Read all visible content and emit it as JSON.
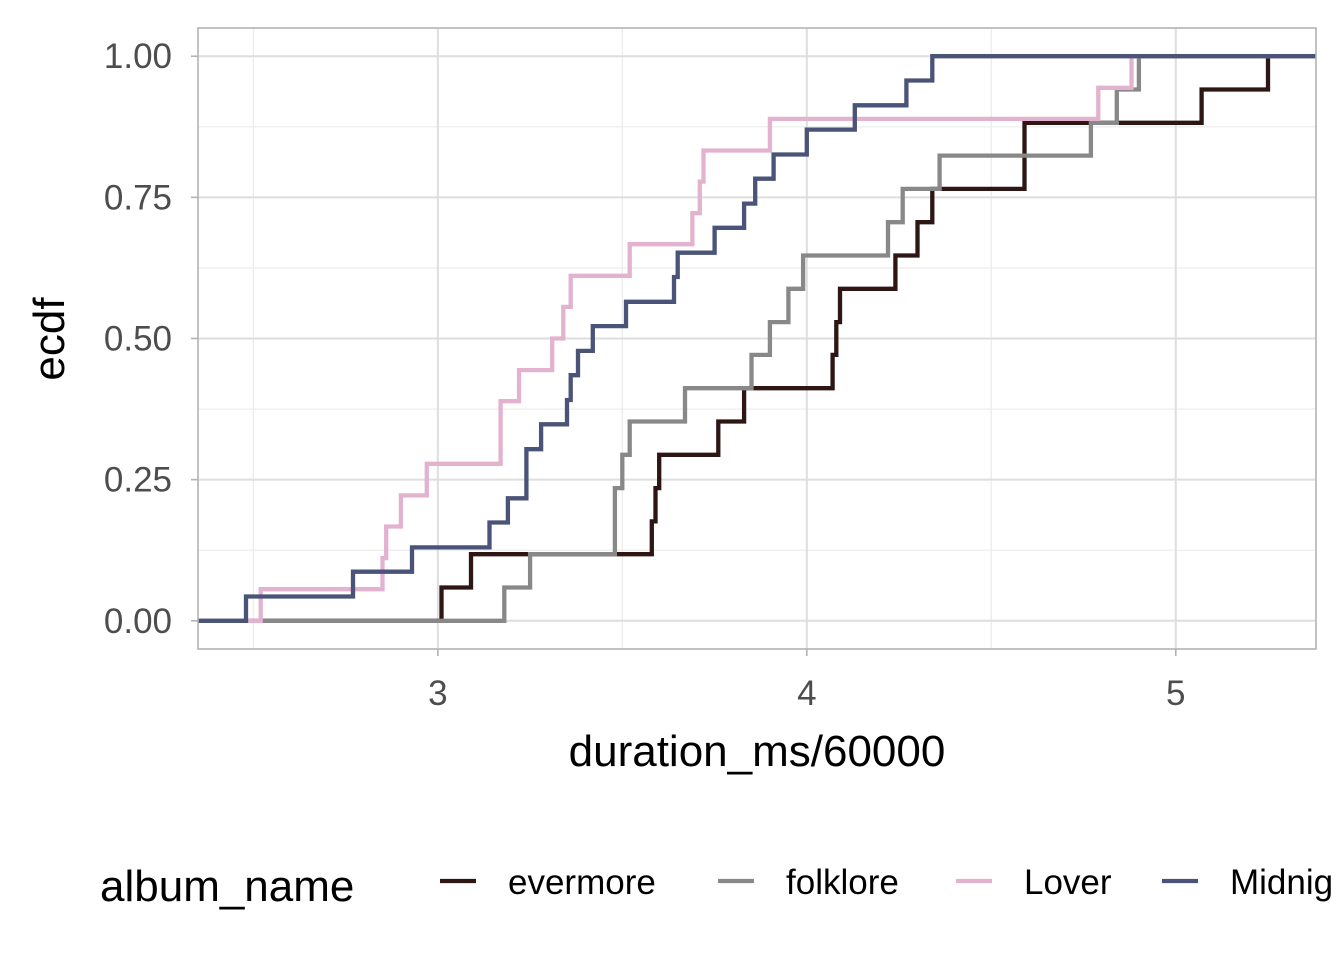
{
  "chart_data": {
    "type": "line",
    "subtype": "ecdf-step",
    "xlabel": "duration_ms/60000",
    "ylabel": "ecdf",
    "xlim": [
      2.35,
      5.38
    ],
    "ylim": [
      -0.05,
      1.05
    ],
    "x_ticks": [
      3,
      4,
      5
    ],
    "x_tick_labels": [
      "3",
      "4",
      "5"
    ],
    "y_ticks": [
      0,
      0.25,
      0.5,
      0.75,
      1
    ],
    "y_tick_labels": [
      "0.00",
      "0.25",
      "0.50",
      "0.75",
      "1.00"
    ],
    "grid": true,
    "legend": {
      "title": "album_name",
      "position": "bottom",
      "entries": [
        "evermore",
        "folklore",
        "Lover",
        "Midnig"
      ]
    },
    "series": [
      {
        "name": "evermore",
        "color": "#2d1613",
        "points": [
          [
            2.35,
            0
          ],
          [
            3.01,
            0
          ],
          [
            3.01,
            0.059
          ],
          [
            3.09,
            0.059
          ],
          [
            3.09,
            0.118
          ],
          [
            3.58,
            0.118
          ],
          [
            3.58,
            0.176
          ],
          [
            3.59,
            0.176
          ],
          [
            3.59,
            0.235
          ],
          [
            3.6,
            0.235
          ],
          [
            3.6,
            0.294
          ],
          [
            3.76,
            0.294
          ],
          [
            3.76,
            0.353
          ],
          [
            3.83,
            0.353
          ],
          [
            3.83,
            0.412
          ],
          [
            4.07,
            0.412
          ],
          [
            4.07,
            0.471
          ],
          [
            4.08,
            0.471
          ],
          [
            4.08,
            0.529
          ],
          [
            4.09,
            0.529
          ],
          [
            4.09,
            0.588
          ],
          [
            4.24,
            0.588
          ],
          [
            4.24,
            0.647
          ],
          [
            4.3,
            0.647
          ],
          [
            4.3,
            0.706
          ],
          [
            4.34,
            0.706
          ],
          [
            4.34,
            0.765
          ],
          [
            4.59,
            0.765
          ],
          [
            4.59,
            0.882
          ],
          [
            5.07,
            0.882
          ],
          [
            5.07,
            0.941
          ],
          [
            5.25,
            0.941
          ],
          [
            5.25,
            1
          ],
          [
            5.38,
            1
          ]
        ]
      },
      {
        "name": "folklore",
        "color": "#888888",
        "points": [
          [
            2.35,
            0
          ],
          [
            3.18,
            0
          ],
          [
            3.18,
            0.059
          ],
          [
            3.25,
            0.059
          ],
          [
            3.25,
            0.118
          ],
          [
            3.48,
            0.118
          ],
          [
            3.48,
            0.235
          ],
          [
            3.5,
            0.235
          ],
          [
            3.5,
            0.294
          ],
          [
            3.52,
            0.294
          ],
          [
            3.52,
            0.353
          ],
          [
            3.67,
            0.353
          ],
          [
            3.67,
            0.412
          ],
          [
            3.85,
            0.412
          ],
          [
            3.85,
            0.471
          ],
          [
            3.9,
            0.471
          ],
          [
            3.9,
            0.529
          ],
          [
            3.95,
            0.529
          ],
          [
            3.95,
            0.588
          ],
          [
            3.99,
            0.588
          ],
          [
            3.99,
            0.647
          ],
          [
            4.22,
            0.647
          ],
          [
            4.22,
            0.706
          ],
          [
            4.26,
            0.706
          ],
          [
            4.26,
            0.765
          ],
          [
            4.36,
            0.765
          ],
          [
            4.36,
            0.824
          ],
          [
            4.77,
            0.824
          ],
          [
            4.77,
            0.882
          ],
          [
            4.84,
            0.882
          ],
          [
            4.84,
            0.941
          ],
          [
            4.9,
            0.941
          ],
          [
            4.9,
            1
          ],
          [
            5.38,
            1
          ]
        ]
      },
      {
        "name": "Lover",
        "color": "#e3b2cf",
        "points": [
          [
            2.35,
            0
          ],
          [
            2.52,
            0
          ],
          [
            2.52,
            0.056
          ],
          [
            2.85,
            0.056
          ],
          [
            2.85,
            0.111
          ],
          [
            2.86,
            0.111
          ],
          [
            2.86,
            0.167
          ],
          [
            2.9,
            0.167
          ],
          [
            2.9,
            0.222
          ],
          [
            2.97,
            0.222
          ],
          [
            2.97,
            0.278
          ],
          [
            3.17,
            0.278
          ],
          [
            3.17,
            0.333
          ],
          [
            3.17,
            0.333
          ],
          [
            3.17,
            0.389
          ],
          [
            3.22,
            0.389
          ],
          [
            3.22,
            0.444
          ],
          [
            3.31,
            0.444
          ],
          [
            3.31,
            0.5
          ],
          [
            3.34,
            0.5
          ],
          [
            3.34,
            0.556
          ],
          [
            3.36,
            0.556
          ],
          [
            3.36,
            0.611
          ],
          [
            3.52,
            0.611
          ],
          [
            3.52,
            0.667
          ],
          [
            3.69,
            0.667
          ],
          [
            3.69,
            0.722
          ],
          [
            3.71,
            0.722
          ],
          [
            3.71,
            0.778
          ],
          [
            3.72,
            0.778
          ],
          [
            3.72,
            0.833
          ],
          [
            3.9,
            0.833
          ],
          [
            3.9,
            0.889
          ],
          [
            4.79,
            0.889
          ],
          [
            4.79,
            0.944
          ],
          [
            4.88,
            0.944
          ],
          [
            4.88,
            1
          ],
          [
            5.38,
            1
          ]
        ]
      },
      {
        "name": "Midnig",
        "color": "#4a5378",
        "points": [
          [
            2.35,
            0
          ],
          [
            2.48,
            0
          ],
          [
            2.48,
            0.043
          ],
          [
            2.77,
            0.043
          ],
          [
            2.77,
            0.087
          ],
          [
            2.93,
            0.087
          ],
          [
            2.93,
            0.13
          ],
          [
            3.14,
            0.13
          ],
          [
            3.14,
            0.174
          ],
          [
            3.19,
            0.174
          ],
          [
            3.19,
            0.217
          ],
          [
            3.24,
            0.217
          ],
          [
            3.24,
            0.261
          ],
          [
            3.24,
            0.261
          ],
          [
            3.24,
            0.304
          ],
          [
            3.28,
            0.304
          ],
          [
            3.28,
            0.348
          ],
          [
            3.35,
            0.348
          ],
          [
            3.35,
            0.391
          ],
          [
            3.36,
            0.391
          ],
          [
            3.36,
            0.435
          ],
          [
            3.38,
            0.435
          ],
          [
            3.38,
            0.478
          ],
          [
            3.42,
            0.478
          ],
          [
            3.42,
            0.522
          ],
          [
            3.51,
            0.522
          ],
          [
            3.51,
            0.565
          ],
          [
            3.64,
            0.565
          ],
          [
            3.64,
            0.609
          ],
          [
            3.65,
            0.609
          ],
          [
            3.65,
            0.652
          ],
          [
            3.75,
            0.652
          ],
          [
            3.75,
            0.696
          ],
          [
            3.83,
            0.696
          ],
          [
            3.83,
            0.739
          ],
          [
            3.86,
            0.739
          ],
          [
            3.86,
            0.783
          ],
          [
            3.91,
            0.783
          ],
          [
            3.91,
            0.826
          ],
          [
            4.0,
            0.826
          ],
          [
            4.0,
            0.87
          ],
          [
            4.13,
            0.87
          ],
          [
            4.13,
            0.913
          ],
          [
            4.27,
            0.913
          ],
          [
            4.27,
            0.957
          ],
          [
            4.34,
            0.957
          ],
          [
            4.34,
            1
          ],
          [
            5.38,
            1
          ]
        ]
      }
    ]
  }
}
